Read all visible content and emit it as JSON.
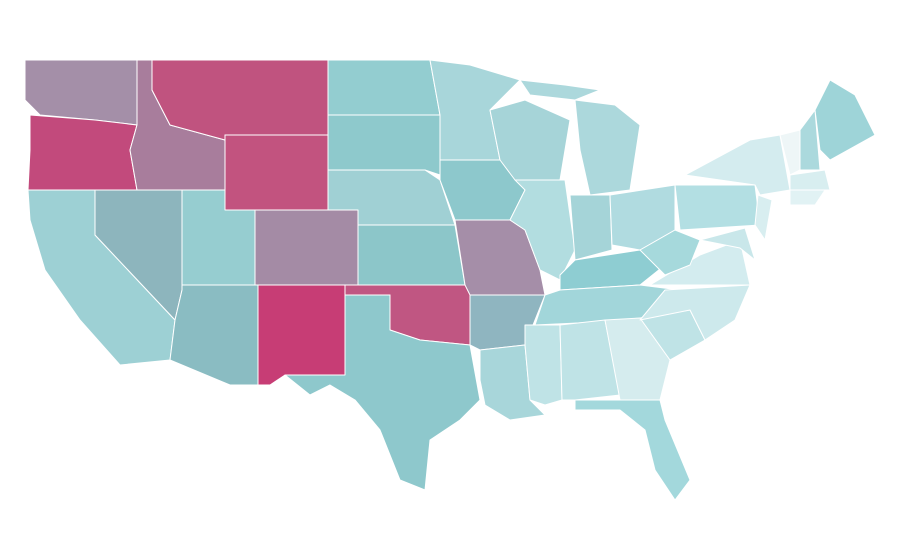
{
  "map": {
    "regions": [
      {
        "color": "#a48fa8"
      },
      {
        "color": "#c24a7c"
      },
      {
        "color": "#a87d9c"
      },
      {
        "color": "#c0537f"
      },
      {
        "color": "#c2537f"
      },
      {
        "color": "#9dd0d4"
      },
      {
        "color": "#8db5bd"
      },
      {
        "color": "#96cdd0"
      },
      {
        "color": "#8abcc2"
      },
      {
        "color": "#a48ba5"
      },
      {
        "color": "#c73d75"
      },
      {
        "color": "#93cdd0"
      },
      {
        "color": "#8ec9cc"
      },
      {
        "color": "#a0d0d4"
      },
      {
        "color": "#8cc6c9"
      },
      {
        "color": "#c05682"
      },
      {
        "color": "#8ec8cc"
      },
      {
        "color": "#a8d6da"
      },
      {
        "color": "#8dc8cc"
      },
      {
        "color": "#a58ea8"
      },
      {
        "color": "#8fb5c0"
      },
      {
        "color": "#a8d6da"
      },
      {
        "color": "#a6d4d8"
      },
      {
        "color": "#b2dde0"
      },
      {
        "color": "#acd8dc"
      },
      {
        "color": "#acd8dc"
      },
      {
        "color": "#a5d4d8"
      },
      {
        "color": "#b0dbe0"
      },
      {
        "color": "#8ecdd2"
      },
      {
        "color": "#a2d6da"
      },
      {
        "color": "#bfe3e6"
      },
      {
        "color": "#bfe3e6"
      },
      {
        "color": "#d5ecee"
      },
      {
        "color": "#a3d8dc"
      },
      {
        "color": "#bfe3e6"
      },
      {
        "color": "#cde9ec"
      },
      {
        "color": "#d3ecef"
      },
      {
        "color": "#a6d9dc"
      },
      {
        "color": "#b3dfe3"
      },
      {
        "color": "#d4ecef"
      },
      {
        "color": "#d8eef0"
      },
      {
        "color": "#c9e7ea"
      },
      {
        "color": "#eef6f7"
      },
      {
        "color": "#abd9dd"
      },
      {
        "color": "#9ed4d8"
      },
      {
        "color": "#d8eef0"
      },
      {
        "color": "#e1f2f4"
      }
    ]
  }
}
